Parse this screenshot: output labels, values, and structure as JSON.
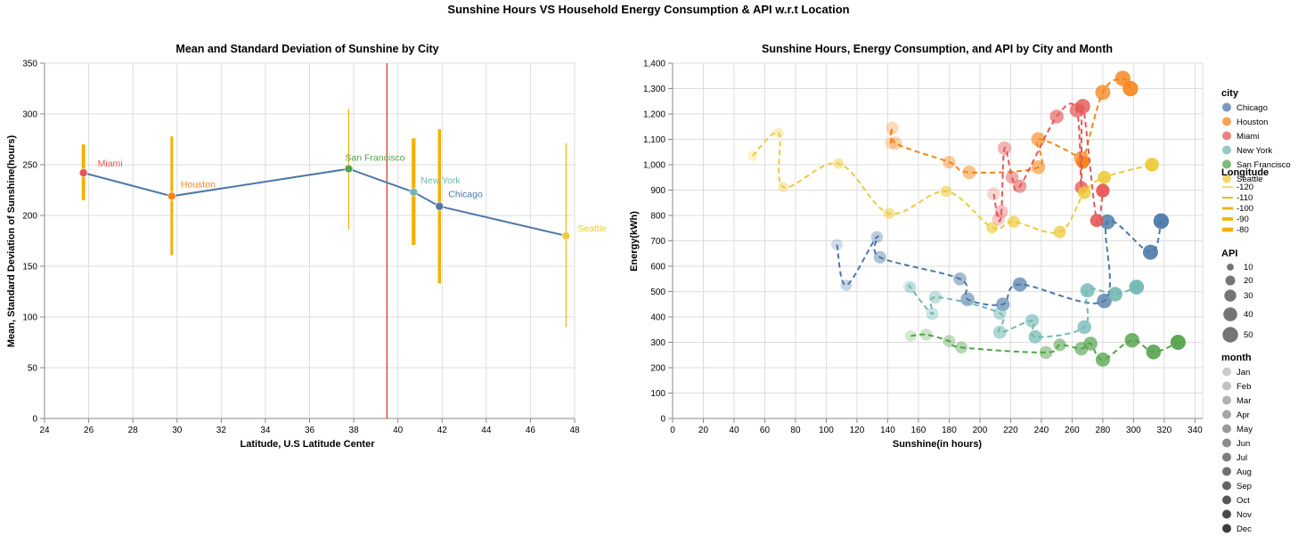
{
  "page_title": "Sunshine Hours VS Household Energy Consumption & API w.r.t Location",
  "colors": {
    "Chicago": "#4c78a8",
    "Houston": "#f58518",
    "Miami": "#e45756",
    "New York": "#72b7b2",
    "San Francisco": "#54a24b",
    "Seattle": "#eeca3b",
    "bar": "#f2b100",
    "mean_line": "#4c78a8",
    "center_rule": "#cc0000",
    "grid": "#dddddd"
  },
  "chart_data": [
    {
      "type": "line",
      "title": "Mean and Standard Deviation of Sunshine by City",
      "xlabel": "Latitude, U.S Latitude Center",
      "ylabel": "Mean, Standard Deviation of Sunshine(hours)",
      "xlim": [
        24,
        48
      ],
      "ylim": [
        0,
        350
      ],
      "x_ticks": [
        "24",
        "26",
        "28",
        "30",
        "32",
        "34",
        "36",
        "38",
        "40",
        "42",
        "44",
        "46",
        "48"
      ],
      "y_ticks": [
        "0",
        "50",
        "100",
        "150",
        "200",
        "250",
        "300",
        "350"
      ],
      "grid": true,
      "center_latitude": 39.5,
      "cities": [
        {
          "city": "Miami",
          "latitude": 25.76,
          "mean": 242,
          "low": 215,
          "high": 270,
          "longitude": -80.2
        },
        {
          "city": "Houston",
          "latitude": 29.76,
          "mean": 219,
          "low": 161,
          "high": 278,
          "longitude": -95.4
        },
        {
          "city": "San Francisco",
          "latitude": 37.77,
          "mean": 246,
          "low": 186,
          "high": 305,
          "longitude": -122.4
        },
        {
          "city": "New York",
          "latitude": 40.71,
          "mean": 223,
          "low": 171,
          "high": 276,
          "longitude": -74.0
        },
        {
          "city": "Chicago",
          "latitude": 41.88,
          "mean": 209,
          "low": 133,
          "high": 285,
          "longitude": -87.6
        },
        {
          "city": "Seattle",
          "latitude": 47.61,
          "mean": 180,
          "low": 90,
          "high": 271,
          "longitude": -122.3
        }
      ]
    },
    {
      "type": "scatter",
      "title": "Sunshine Hours, Energy Consumption, and API by City and Month",
      "xlabel": "Sunshine(in hours)",
      "ylabel": "Energy(kWh)",
      "xlim": [
        0,
        345
      ],
      "ylim": [
        0,
        1400
      ],
      "x_ticks": [
        "0",
        "20",
        "40",
        "60",
        "80",
        "100",
        "120",
        "140",
        "160",
        "180",
        "200",
        "220",
        "240",
        "260",
        "280",
        "300",
        "320",
        "340"
      ],
      "y_ticks": [
        "0",
        "100",
        "200",
        "300",
        "400",
        "500",
        "600",
        "700",
        "800",
        "900",
        "1,000",
        "1,100",
        "1,200",
        "1,300",
        "1,400"
      ],
      "grid": true,
      "series": [
        {
          "name": "Chicago",
          "points": [
            {
              "month": 1,
              "x": 107,
              "y": 685,
              "api": 28
            },
            {
              "month": 2,
              "x": 113,
              "y": 525,
              "api": 26
            },
            {
              "month": 3,
              "x": 133,
              "y": 715,
              "api": 30
            },
            {
              "month": 4,
              "x": 135,
              "y": 635,
              "api": 33
            },
            {
              "month": 5,
              "x": 187,
              "y": 550,
              "api": 35
            },
            {
              "month": 6,
              "x": 192,
              "y": 470,
              "api": 40
            },
            {
              "month": 7,
              "x": 215,
              "y": 450,
              "api": 38
            },
            {
              "month": 8,
              "x": 226,
              "y": 528,
              "api": 42
            },
            {
              "month": 9,
              "x": 281,
              "y": 463,
              "api": 45
            },
            {
              "month": 10,
              "x": 283,
              "y": 775,
              "api": 47
            },
            {
              "month": 11,
              "x": 311,
              "y": 655,
              "api": 48
            },
            {
              "month": 12,
              "x": 318,
              "y": 778,
              "api": 50
            }
          ]
        },
        {
          "name": "Houston",
          "points": [
            {
              "month": 1,
              "x": 142,
              "y": 1085,
              "api": 30
            },
            {
              "month": 2,
              "x": 143,
              "y": 1145,
              "api": 32
            },
            {
              "month": 3,
              "x": 145,
              "y": 1085,
              "api": 35
            },
            {
              "month": 4,
              "x": 180,
              "y": 1010,
              "api": 33
            },
            {
              "month": 5,
              "x": 193,
              "y": 970,
              "api": 38
            },
            {
              "month": 6,
              "x": 238,
              "y": 990,
              "api": 40
            },
            {
              "month": 7,
              "x": 238,
              "y": 1100,
              "api": 42
            },
            {
              "month": 8,
              "x": 266,
              "y": 1025,
              "api": 45
            },
            {
              "month": 9,
              "x": 280,
              "y": 1285,
              "api": 48
            },
            {
              "month": 10,
              "x": 293,
              "y": 1340,
              "api": 50
            },
            {
              "month": 11,
              "x": 298,
              "y": 1300,
              "api": 50
            },
            {
              "month": 12,
              "x": 267,
              "y": 1010,
              "api": 36
            }
          ]
        },
        {
          "name": "Miami",
          "points": [
            {
              "month": 1,
              "x": 209,
              "y": 885,
              "api": 35
            },
            {
              "month": 2,
              "x": 212,
              "y": 785,
              "api": 33
            },
            {
              "month": 3,
              "x": 214,
              "y": 815,
              "api": 36
            },
            {
              "month": 4,
              "x": 216,
              "y": 1065,
              "api": 38
            },
            {
              "month": 5,
              "x": 221,
              "y": 950,
              "api": 34
            },
            {
              "month": 6,
              "x": 226,
              "y": 915,
              "api": 37
            },
            {
              "month": 7,
              "x": 250,
              "y": 1190,
              "api": 40
            },
            {
              "month": 8,
              "x": 263,
              "y": 1215,
              "api": 42
            },
            {
              "month": 9,
              "x": 266,
              "y": 910,
              "api": 35
            },
            {
              "month": 10,
              "x": 267,
              "y": 1230,
              "api": 45
            },
            {
              "month": 11,
              "x": 276,
              "y": 780,
              "api": 36
            },
            {
              "month": 12,
              "x": 280,
              "y": 898,
              "api": 38
            }
          ]
        },
        {
          "name": "New York",
          "points": [
            {
              "month": 1,
              "x": 154,
              "y": 520,
              "api": 30
            },
            {
              "month": 2,
              "x": 155,
              "y": 515,
              "api": 28
            },
            {
              "month": 3,
              "x": 169,
              "y": 412,
              "api": 32
            },
            {
              "month": 4,
              "x": 171,
              "y": 478,
              "api": 34
            },
            {
              "month": 5,
              "x": 213,
              "y": 415,
              "api": 35
            },
            {
              "month": 6,
              "x": 213,
              "y": 340,
              "api": 36
            },
            {
              "month": 7,
              "x": 234,
              "y": 385,
              "api": 38
            },
            {
              "month": 8,
              "x": 236,
              "y": 322,
              "api": 37
            },
            {
              "month": 9,
              "x": 268,
              "y": 360,
              "api": 40
            },
            {
              "month": 10,
              "x": 270,
              "y": 505,
              "api": 42
            },
            {
              "month": 11,
              "x": 288,
              "y": 490,
              "api": 44
            },
            {
              "month": 12,
              "x": 302,
              "y": 518,
              "api": 46
            }
          ]
        },
        {
          "name": "San Francisco",
          "points": [
            {
              "month": 1,
              "x": 155,
              "y": 325,
              "api": 28
            },
            {
              "month": 2,
              "x": 165,
              "y": 330,
              "api": 30
            },
            {
              "month": 3,
              "x": 180,
              "y": 305,
              "api": 32
            },
            {
              "month": 4,
              "x": 188,
              "y": 280,
              "api": 31
            },
            {
              "month": 5,
              "x": 243,
              "y": 260,
              "api": 35
            },
            {
              "month": 6,
              "x": 252,
              "y": 290,
              "api": 33
            },
            {
              "month": 7,
              "x": 266,
              "y": 275,
              "api": 38
            },
            {
              "month": 8,
              "x": 272,
              "y": 295,
              "api": 40
            },
            {
              "month": 9,
              "x": 280,
              "y": 232,
              "api": 42
            },
            {
              "month": 10,
              "x": 299,
              "y": 308,
              "api": 44
            },
            {
              "month": 11,
              "x": 313,
              "y": 262,
              "api": 46
            },
            {
              "month": 12,
              "x": 329,
              "y": 300,
              "api": 48
            }
          ]
        },
        {
          "name": "Seattle",
          "points": [
            {
              "month": 1,
              "x": 52,
              "y": 1035,
              "api": 24
            },
            {
              "month": 2,
              "x": 69,
              "y": 1125,
              "api": 22
            },
            {
              "month": 3,
              "x": 72,
              "y": 912,
              "api": 23
            },
            {
              "month": 4,
              "x": 108,
              "y": 1005,
              "api": 24
            },
            {
              "month": 5,
              "x": 141,
              "y": 808,
              "api": 25
            },
            {
              "month": 6,
              "x": 178,
              "y": 895,
              "api": 26
            },
            {
              "month": 7,
              "x": 208,
              "y": 752,
              "api": 28
            },
            {
              "month": 8,
              "x": 222,
              "y": 775,
              "api": 30
            },
            {
              "month": 9,
              "x": 252,
              "y": 735,
              "api": 32
            },
            {
              "month": 10,
              "x": 268,
              "y": 890,
              "api": 34
            },
            {
              "month": 11,
              "x": 281,
              "y": 950,
              "api": 36
            },
            {
              "month": 12,
              "x": 312,
              "y": 1000,
              "api": 40
            }
          ]
        }
      ]
    }
  ],
  "legend": {
    "city_title": "city",
    "cities": [
      "Chicago",
      "Houston",
      "Miami",
      "New York",
      "San Francisco",
      "Seattle"
    ],
    "longitude_title": "Longitude",
    "longitudes": [
      "-120",
      "-110",
      "-100",
      "-90",
      "-80"
    ],
    "api_title": "API",
    "api_values": [
      "10",
      "20",
      "30",
      "40",
      "50"
    ],
    "month_title": "month",
    "months": [
      "Jan",
      "Feb",
      "Mar",
      "Apr",
      "May",
      "Jun",
      "Jul",
      "Aug",
      "Sep",
      "Oct",
      "Nov",
      "Dec"
    ]
  }
}
